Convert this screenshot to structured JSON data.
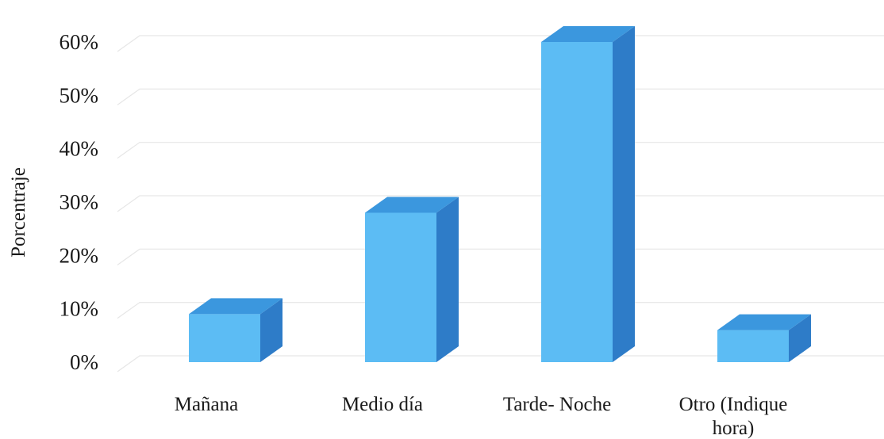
{
  "chart_data": {
    "type": "bar",
    "style": "3d-column",
    "title": "",
    "xlabel": "",
    "ylabel": "Porcentraje",
    "categories": [
      "Mañana",
      "Medio día",
      "Tarde- Noche",
      "Otro (Indique hora)"
    ],
    "category_lines": [
      [
        "Mañana"
      ],
      [
        "Medio día"
      ],
      [
        "Tarde- Noche"
      ],
      [
        "Otro (Indique",
        "hora)"
      ]
    ],
    "values": [
      9,
      28,
      60,
      6
    ],
    "value_unit": "%",
    "ylim": [
      0,
      60
    ],
    "yticks": [
      "0%",
      "10%",
      "20%",
      "30%",
      "40%",
      "50%",
      "60%"
    ],
    "grid": true,
    "legend": "none",
    "colors": {
      "bar_front": "#5cbcf4",
      "bar_top": "#3b97de",
      "bar_side": "#2e7cc8",
      "grid": "#e6e6e6"
    }
  }
}
